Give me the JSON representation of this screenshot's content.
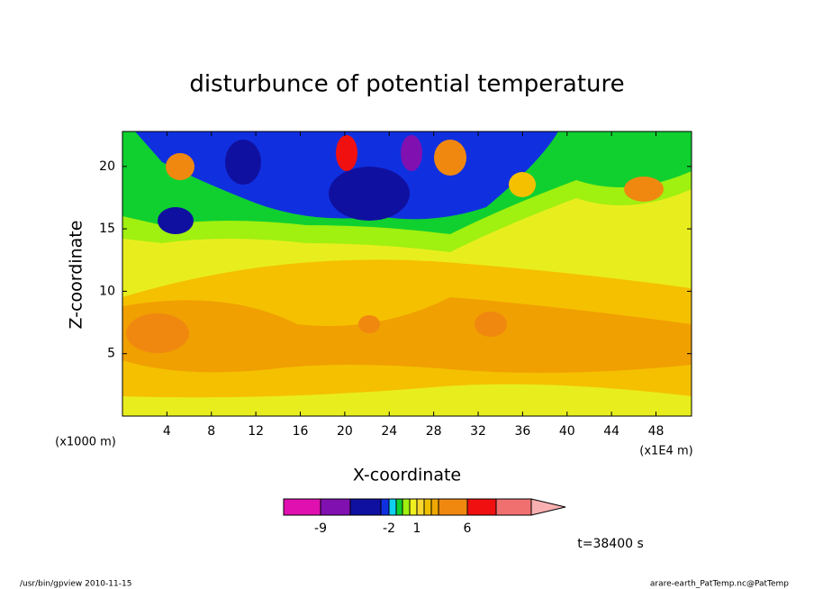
{
  "chart_data": {
    "type": "contour",
    "title": "disturbunce of potential temperature",
    "x_label": "X-coordinate",
    "y_label": "Z-coordinate",
    "x_unit": "(x1E4 m)",
    "y_unit": "(x1000 m)",
    "xlim": [
      0,
      51.2
    ],
    "xticks": [
      4,
      8,
      12,
      16,
      20,
      24,
      28,
      32,
      36,
      40,
      44,
      48
    ],
    "ylim": [
      0,
      22.8
    ],
    "yticks": [
      5,
      10,
      15,
      20
    ],
    "colorbar": {
      "colors": [
        "#e010b0",
        "#8010b0",
        "#1010a0",
        "#1030e0",
        "#10d0f0",
        "#10d030",
        "#a0f010",
        "#f0f020",
        "#f8d830",
        "#f0c000",
        "#f0a800",
        "#f08810",
        "#f01010",
        "#f07070",
        "#f8b0b0"
      ],
      "levels": [
        -9,
        -6,
        -3,
        -2,
        -1,
        -0.5,
        0.5,
        1,
        2,
        3,
        4,
        6,
        9
      ],
      "ticks": [
        -9,
        -2,
        1,
        6
      ]
    },
    "time_label": "t=38400 s",
    "footer_left": "/usr/bin/gpview  2010-11-15",
    "footer_right": "arare-earth_PatTemp.nc@PatTemp"
  }
}
